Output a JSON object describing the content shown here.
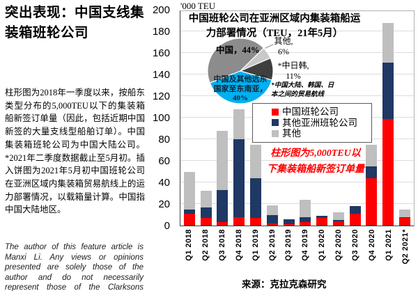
{
  "left_panel": {
    "title": "突出表现：中国支线集装箱班轮公司",
    "body": "柱形图为2018年一季度以来，按船东类型分布的5,000TEU以下的集装箱船新签订单量（因此，包括近期中国新签的大量支线型船舶订单）。中国集装箱班轮公司为中国大陆公司。*2021年二季度数据截止至5月初。插入饼图为2021年5月初中国班轮公司在亚洲区域内集装箱贸易航线上的运力部署情况，以载箱量计算。中国指中国大陆地区。",
    "disclaimer": "The author of this feature article is Manxi Li. Any views or opinions presented are solely those of the author and do not necessarily represent those of the Clarksons group."
  },
  "chart": {
    "unit_label": "'000 TEU",
    "inset_title": "中国班轮公司在亚洲区域内集装箱船运\n力部署情况（TEU，21年5月）",
    "annotation": "柱形图为5,000TEU以\n下集装箱船新签订单量",
    "source": "来源：克拉克森研究",
    "pie_labels": {
      "china": "中国，44%",
      "other": "其他,\n6%",
      "cjk": "*中日韩,\n11%",
      "cjk_footnote": "*中国大陆、韩国、日\n本之间的贸易航线",
      "sea": "中国及其他远东\n国家至东南亚，\n40%"
    }
  },
  "chart_data": [
    {
      "type": "bar",
      "stacked": true,
      "title": "5,000TEU以下集装箱船新签订单量",
      "ylabel": "'000 TEU",
      "ylim": [
        0,
        200
      ],
      "ytick_step": 20,
      "grid": true,
      "legend_position": "inside-top-right",
      "categories": [
        "Q1 2018",
        "Q2 2018",
        "Q3 2018",
        "Q4 2018",
        "Q1 2019",
        "Q2 2019",
        "Q3 2019",
        "Q4 2019",
        "Q1 2020",
        "Q2 2020",
        "Q3 2020",
        "Q4 2020",
        "Q1 2021",
        "Q2 2021*"
      ],
      "series": [
        {
          "name": "中国班轮公司",
          "color": "#ff0000",
          "values": [
            11,
            7,
            3,
            8,
            7,
            2,
            1,
            3,
            7,
            4,
            11,
            44,
            99,
            7
          ]
        },
        {
          "name": "其他亚洲班轮公司",
          "color": "#1f3864",
          "values": [
            4,
            10,
            30,
            72,
            37,
            8,
            5,
            5,
            2,
            1,
            7,
            11,
            52,
            1
          ]
        },
        {
          "name": "其他",
          "color": "#bfbfbf",
          "values": [
            35,
            15,
            55,
            28,
            31,
            9,
            0,
            16,
            0,
            7,
            0,
            20,
            37,
            7
          ]
        }
      ]
    },
    {
      "type": "pie",
      "title": "中国班轮公司在亚洲区域内集装箱船运力部署情况（TEU，21年5月）",
      "footnote": "*中国大陆、韩国、日本之间的贸易航线",
      "slices": [
        {
          "label": "中国",
          "value": 44,
          "color": "#8c8c8c"
        },
        {
          "label": "其他",
          "value": 6,
          "color": "#c9c9c9"
        },
        {
          "label": "*中日韩",
          "value": 11,
          "color": "#3f3f3f"
        },
        {
          "label": "中国及其他远东国家至东南亚",
          "value": 40,
          "color": "#00b0f0"
        }
      ]
    }
  ]
}
